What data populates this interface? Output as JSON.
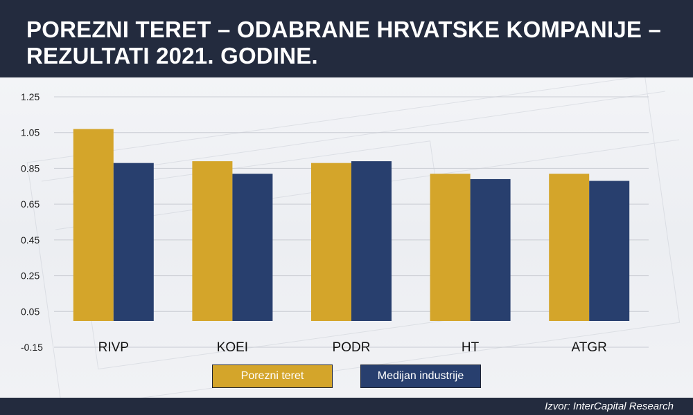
{
  "header": {
    "title_line1": "POREZNI TERET – ODABRANE HRVATSKE KOMPANIJE –",
    "title_line2": "REZULTATI 2021. GODINE."
  },
  "footer": {
    "source": "Izvor: InterCapital Research"
  },
  "colors": {
    "header_bg": "#232b3e",
    "series_gold": "#d4a52a",
    "series_navy": "#283f6e",
    "grid": "#c9ccd3"
  },
  "chart_data": {
    "type": "bar",
    "title": "POREZNI TERET – ODABRANE HRVATSKE KOMPANIJE – REZULTATI 2021. GODINE.",
    "categories": [
      "RIVP",
      "KOEI",
      "PODR",
      "HT",
      "ATGR"
    ],
    "series": [
      {
        "name": "Porezni teret",
        "color": "#d4a52a",
        "values": [
          1.07,
          0.89,
          0.88,
          0.82,
          0.82
        ]
      },
      {
        "name": "Medijan industrije",
        "color": "#283f6e",
        "values": [
          0.88,
          0.82,
          0.89,
          0.79,
          0.78
        ]
      }
    ],
    "yticks": [
      "1.25",
      "1.05",
      "0.85",
      "0.65",
      "0.45",
      "0.25",
      "0.05",
      "-0.15"
    ],
    "ylim": [
      -0.15,
      1.25
    ],
    "grid": true,
    "legend": "bottom"
  }
}
